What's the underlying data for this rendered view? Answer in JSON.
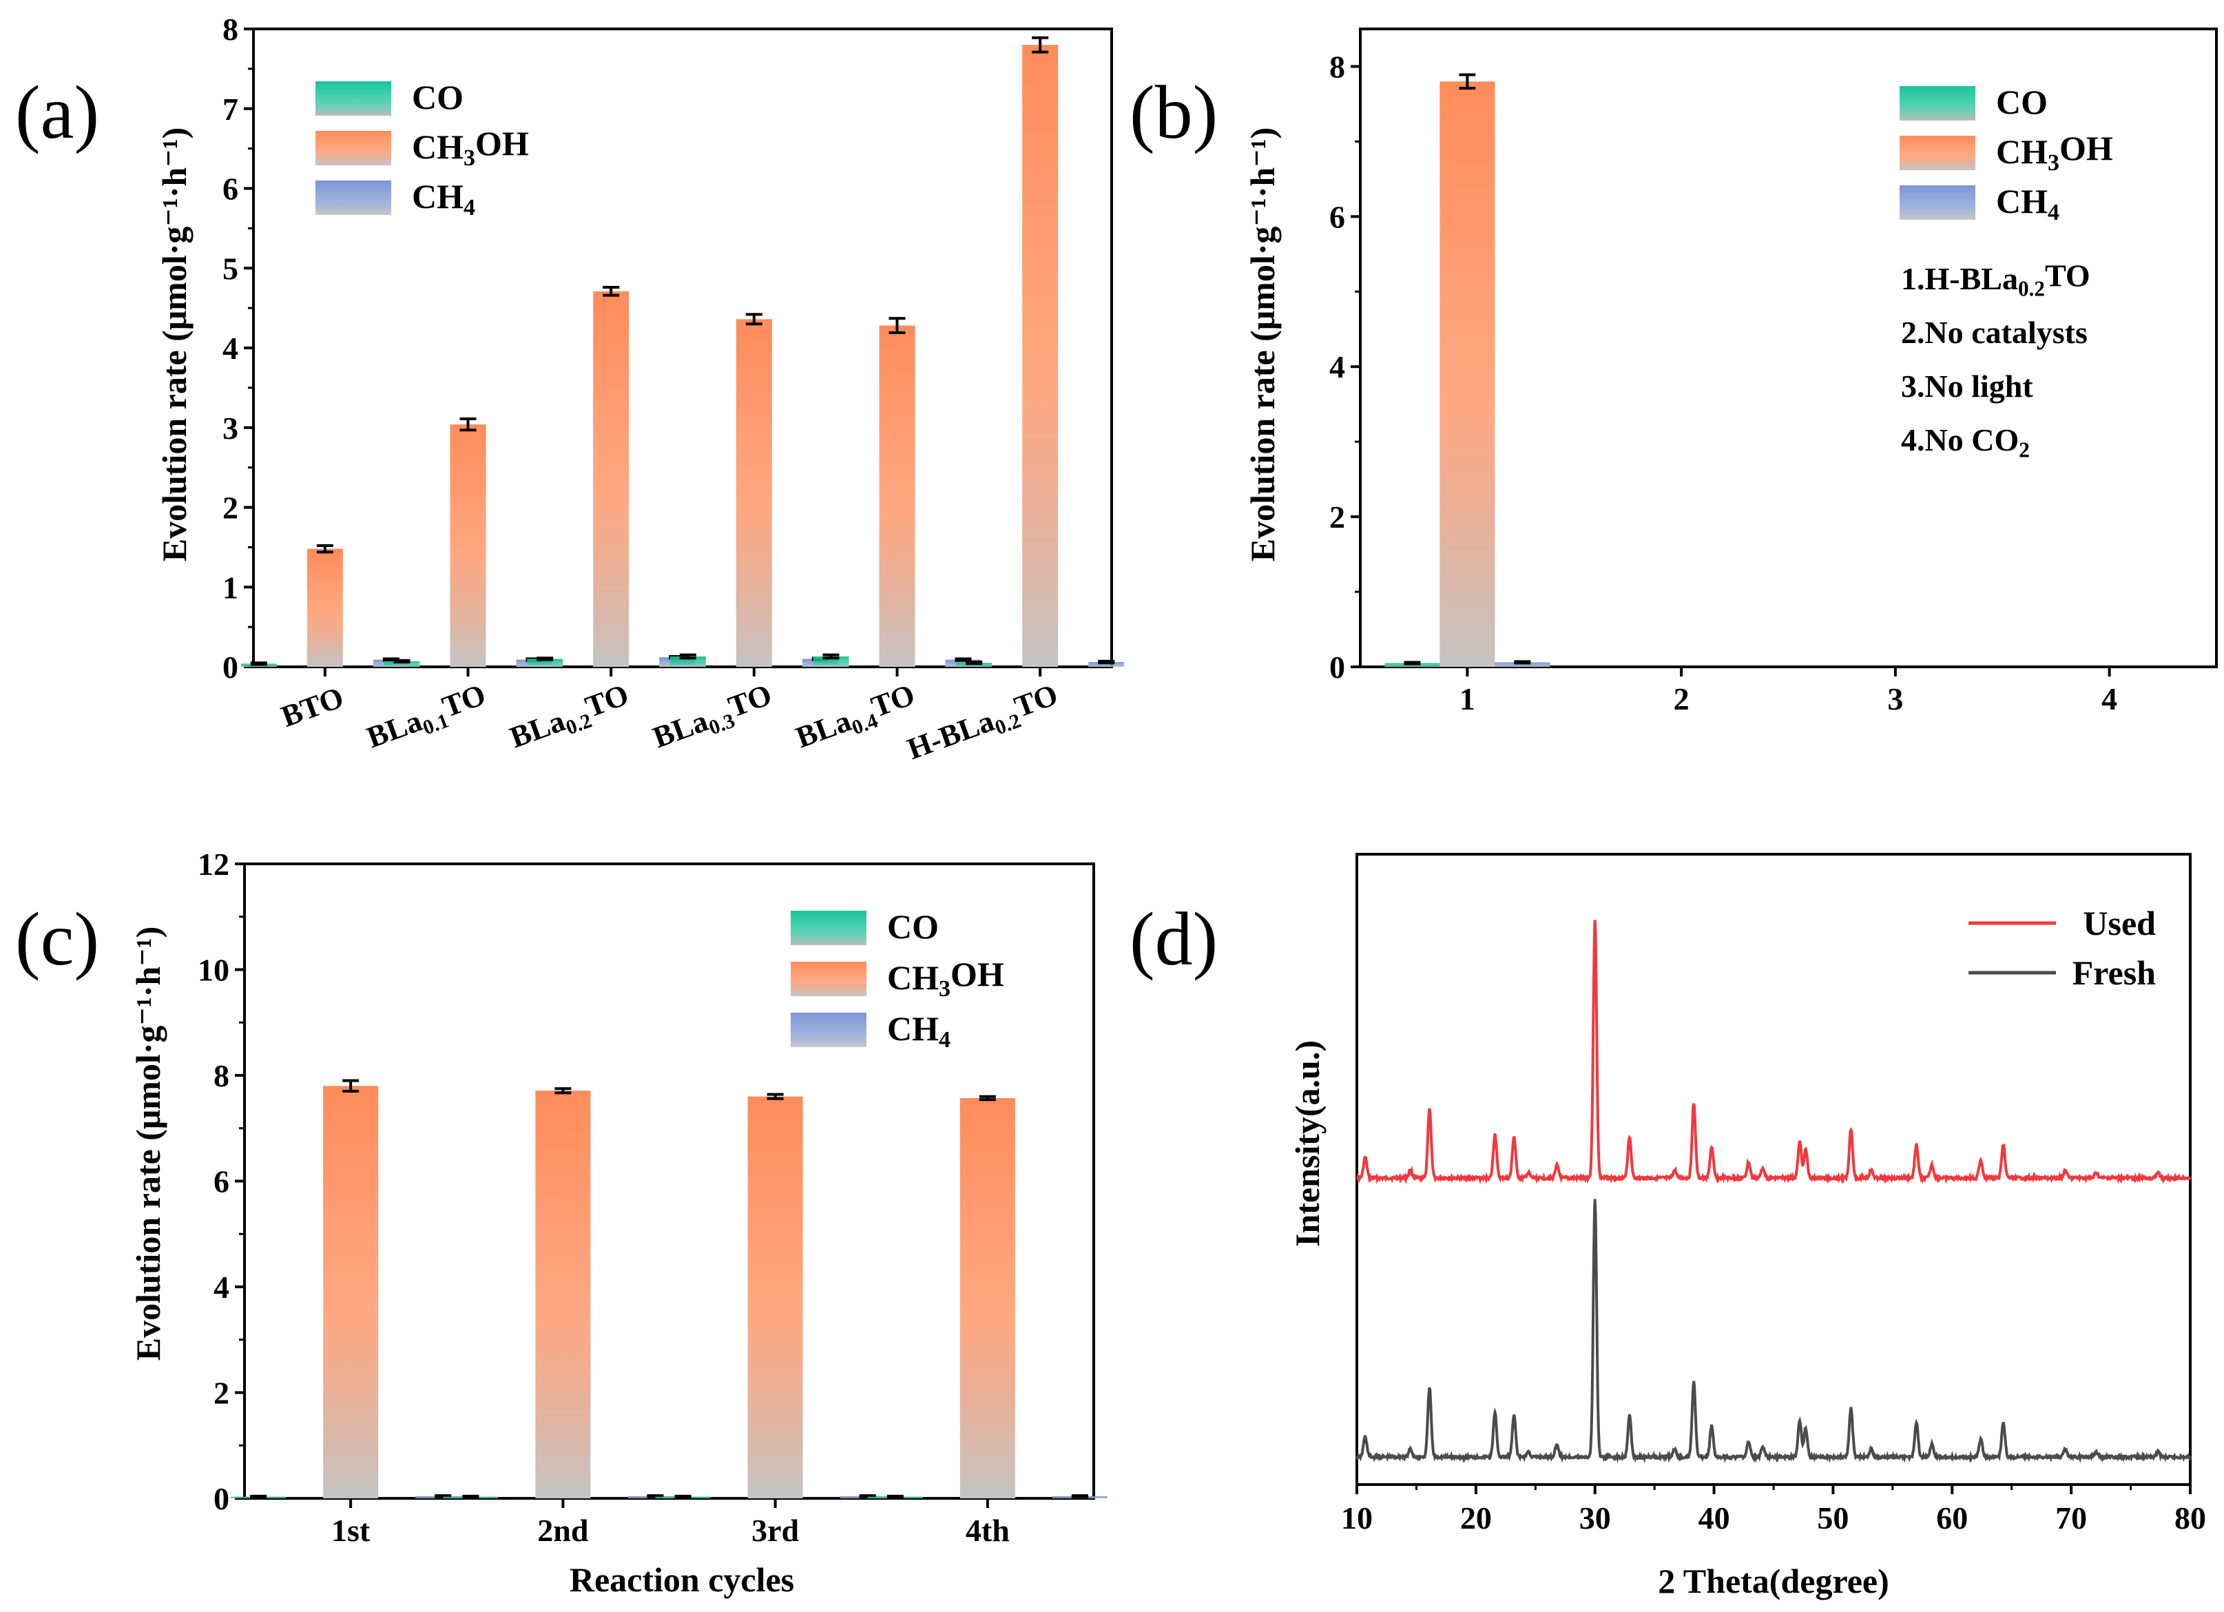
{
  "colors": {
    "co_top": "#19c49a",
    "co_bottom": "#b9bfbd",
    "ch3oh_top": "#ff8c5a",
    "ch3oh_bottom": "#c4c4c4",
    "ch4_top": "#7a96d2",
    "ch4_bottom": "#c8c8c8",
    "used": "#f2383d",
    "fresh": "#4b4b4b"
  },
  "legend": [
    {
      "key": "co",
      "base": "CO",
      "sub": "",
      "tail": ""
    },
    {
      "key": "ch3oh",
      "base": "CH",
      "sub": "3",
      "tail": "OH"
    },
    {
      "key": "ch4",
      "base": "CH",
      "sub": "4",
      "tail": ""
    }
  ],
  "chart_data": [
    {
      "panel": "(a)",
      "type": "bar",
      "ylabel": "Evolution rate (μmol·g⁻¹·h⁻¹)",
      "ylim": [
        0,
        8
      ],
      "yticks": [
        0,
        1,
        2,
        3,
        4,
        5,
        6,
        7,
        8
      ],
      "categories": [
        {
          "base": "BTO",
          "sub": "",
          "tail": ""
        },
        {
          "base": "BLa",
          "sub": "0.1",
          "tail": "TO"
        },
        {
          "base": "BLa",
          "sub": "0.2",
          "tail": "TO"
        },
        {
          "base": "BLa",
          "sub": "0.3",
          "tail": "TO"
        },
        {
          "base": "BLa",
          "sub": "0.4",
          "tail": "TO"
        },
        {
          "base": "H-BLa",
          "sub": "0.2",
          "tail": "TO"
        }
      ],
      "series": [
        {
          "name": "CO",
          "values": [
            0.04,
            0.07,
            0.1,
            0.13,
            0.13,
            0.05
          ],
          "errors": [
            0.01,
            0.01,
            0.01,
            0.02,
            0.02,
            0.01
          ]
        },
        {
          "name": "CH3OH",
          "values": [
            1.48,
            3.04,
            4.71,
            4.36,
            4.28,
            7.8
          ],
          "errors": [
            0.04,
            0.07,
            0.05,
            0.06,
            0.09,
            0.09
          ]
        },
        {
          "name": "CH4",
          "values": [
            0.09,
            0.09,
            0.12,
            0.1,
            0.09,
            0.06
          ],
          "errors": [
            0.01,
            0.01,
            0.01,
            0.01,
            0.01,
            0.01
          ]
        }
      ]
    },
    {
      "panel": "(b)",
      "type": "bar",
      "ylabel": "Evolution rate (μmol·g⁻¹·h⁻¹)",
      "ylim": [
        0,
        8.5
      ],
      "yticks": [
        0,
        2,
        4,
        6,
        8
      ],
      "categories": [
        "1",
        "2",
        "3",
        "4"
      ],
      "notes": [
        {
          "base": "1.H-BLa",
          "sub": "0.2",
          "tail": "TO"
        },
        {
          "base": "2.No catalysts",
          "sub": "",
          "tail": ""
        },
        {
          "base": "3.No light",
          "sub": "",
          "tail": ""
        },
        {
          "base": "4.No CO",
          "sub": "2",
          "tail": ""
        }
      ],
      "series": [
        {
          "name": "CO",
          "values": [
            0.05,
            0,
            0,
            0
          ],
          "errors": [
            0.01,
            0,
            0,
            0
          ]
        },
        {
          "name": "CH3OH",
          "values": [
            7.8,
            0,
            0,
            0
          ],
          "errors": [
            0.09,
            0,
            0,
            0
          ]
        },
        {
          "name": "CH4",
          "values": [
            0.06,
            0,
            0,
            0
          ],
          "errors": [
            0.01,
            0,
            0,
            0
          ]
        }
      ]
    },
    {
      "panel": "(c)",
      "type": "bar",
      "xlabel": "Reaction cycles",
      "ylabel": "Evolution rate (μmol·g⁻¹·h⁻¹)",
      "ylim": [
        0,
        12
      ],
      "yticks": [
        0,
        2,
        4,
        6,
        8,
        10,
        12
      ],
      "categories": [
        "1st",
        "2nd",
        "3rd",
        "4th"
      ],
      "series": [
        {
          "name": "CO",
          "values": [
            0.03,
            0.03,
            0.03,
            0.03
          ],
          "errors": [
            0.01,
            0.01,
            0.01,
            0.01
          ]
        },
        {
          "name": "CH3OH",
          "values": [
            7.8,
            7.71,
            7.6,
            7.57
          ],
          "errors": [
            0.1,
            0.04,
            0.04,
            0.03
          ]
        },
        {
          "name": "CH4",
          "values": [
            0.04,
            0.04,
            0.04,
            0.04
          ],
          "errors": [
            0.01,
            0.01,
            0.01,
            0.01
          ]
        }
      ]
    },
    {
      "panel": "(d)",
      "type": "line",
      "xlabel": "2 Theta(degree)",
      "ylabel": "Intensity(a.u.)",
      "xlim": [
        10,
        80
      ],
      "xticks": [
        10,
        20,
        30,
        40,
        50,
        60,
        70,
        80
      ],
      "peaks": [
        {
          "pos": 10.7,
          "height": 0.08
        },
        {
          "pos": 14.5,
          "height": 0.03
        },
        {
          "pos": 16.1,
          "height": 0.27
        },
        {
          "pos": 21.6,
          "height": 0.17
        },
        {
          "pos": 23.2,
          "height": 0.16
        },
        {
          "pos": 24.4,
          "height": 0.02
        },
        {
          "pos": 26.8,
          "height": 0.05
        },
        {
          "pos": 30.0,
          "height": 1.0
        },
        {
          "pos": 32.9,
          "height": 0.16
        },
        {
          "pos": 36.7,
          "height": 0.03
        },
        {
          "pos": 38.3,
          "height": 0.29
        },
        {
          "pos": 39.8,
          "height": 0.12
        },
        {
          "pos": 42.9,
          "height": 0.06
        },
        {
          "pos": 44.1,
          "height": 0.04
        },
        {
          "pos": 47.2,
          "height": 0.14
        },
        {
          "pos": 47.7,
          "height": 0.11
        },
        {
          "pos": 51.5,
          "height": 0.19
        },
        {
          "pos": 53.2,
          "height": 0.03
        },
        {
          "pos": 57.0,
          "height": 0.13
        },
        {
          "pos": 58.3,
          "height": 0.05
        },
        {
          "pos": 62.4,
          "height": 0.07
        },
        {
          "pos": 64.3,
          "height": 0.13
        },
        {
          "pos": 69.5,
          "height": 0.03
        },
        {
          "pos": 72.1,
          "height": 0.02
        },
        {
          "pos": 77.3,
          "height": 0.02
        }
      ],
      "series": [
        {
          "name": "Used",
          "offset": 1.0
        },
        {
          "name": "Fresh",
          "offset": 0.0
        }
      ]
    }
  ]
}
